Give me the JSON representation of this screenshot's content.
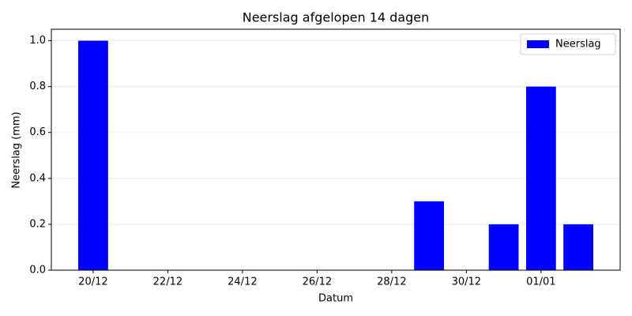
{
  "chart_data": {
    "type": "bar",
    "title": "Neerslag afgelopen 14 dagen",
    "x_label": "Datum",
    "y_label": "Neerslag (mm)",
    "categories": [
      "20/12",
      null,
      "22/12",
      null,
      "24/12",
      null,
      "26/12",
      null,
      "28/12",
      null,
      "30/12",
      null,
      "01/01",
      null
    ],
    "series": [
      {
        "name": "Neerslag",
        "color": "#0000ff",
        "values": [
          1.0,
          0,
          0,
          0,
          0,
          0,
          0,
          0,
          0,
          0.3,
          0,
          0.2,
          0.8,
          0.2
        ]
      }
    ],
    "ylim": [
      0,
      1.05
    ],
    "yticks": [
      {
        "value": 0,
        "label": "0.0"
      },
      {
        "value": 0.2,
        "label": "0.2"
      },
      {
        "value": 0.4,
        "label": "0.4"
      },
      {
        "value": 0.6,
        "label": "0.6"
      },
      {
        "value": 0.8,
        "label": "0.8"
      },
      {
        "value": 1.0,
        "label": "1.0"
      }
    ],
    "grid": true,
    "legend": "upper right"
  }
}
